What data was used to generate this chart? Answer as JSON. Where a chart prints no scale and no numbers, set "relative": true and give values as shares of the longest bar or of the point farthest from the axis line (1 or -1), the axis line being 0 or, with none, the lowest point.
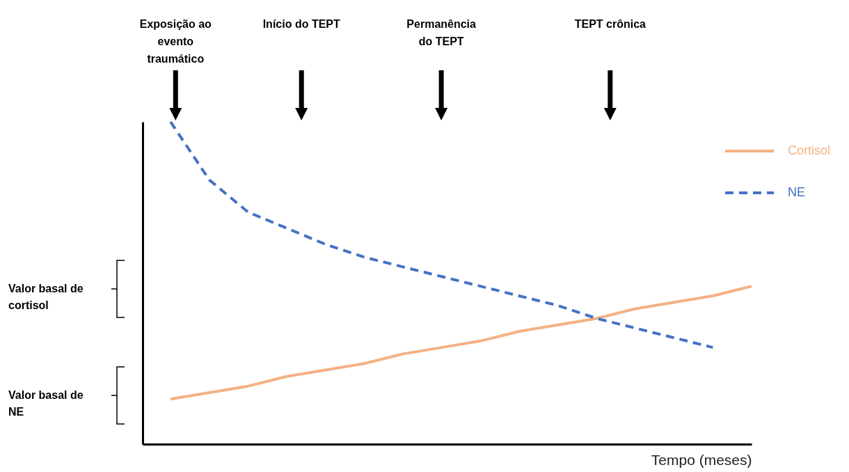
{
  "chart_data": {
    "type": "line",
    "relative": true,
    "xlabel": "Tempo (meses)",
    "categories": [
      null,
      null,
      null,
      null,
      null,
      null,
      null,
      null,
      null,
      null,
      null,
      null,
      null,
      null,
      null,
      null
    ],
    "series": [
      {
        "name": "Cortisol",
        "color": "#f4b183",
        "line_style": "solid",
        "values": [
          0.14,
          0.16,
          0.18,
          0.21,
          0.23,
          0.25,
          0.28,
          0.3,
          0.32,
          0.35,
          0.37,
          0.39,
          0.42,
          0.44,
          0.46,
          0.49
        ]
      },
      {
        "name": "NE",
        "color": "#4472c4",
        "line_style": "dashed",
        "values": [
          1.0,
          0.82,
          0.72,
          0.67,
          0.62,
          0.58,
          0.55,
          0.52,
          0.49,
          0.46,
          0.43,
          0.39,
          0.36,
          0.33,
          0.3,
          null
        ]
      }
    ],
    "annotations": [
      "Exposição ao evento traumático",
      "Início do TEPT",
      "Permanência do TEPT",
      "TEPT crônica",
      "Valor basal de cortisol",
      "Valor basal de NE"
    ],
    "legend": "right",
    "grid": false,
    "marker": "none"
  }
}
